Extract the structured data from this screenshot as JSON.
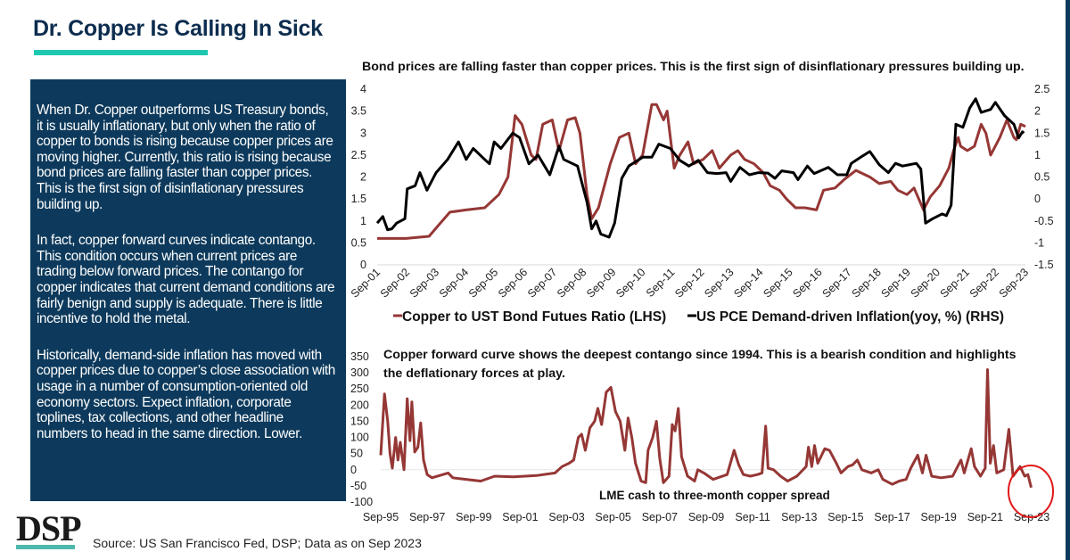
{
  "header": {
    "title": "Dr. Copper Is Calling In Sick"
  },
  "commentary": [
    "When Dr. Copper outperforms US Treasury bonds, it is usually inflationary, but only when the ratio of copper to bonds is rising because copper prices are moving higher. Currently, this ratio is rising because bond prices are falling faster than copper prices. This is the first sign of disinflationary pressures building up.",
    "In fact, copper forward curves indicate contango. This condition occurs when current prices are trading below forward prices. The contango for copper indicates that current demand conditions are fairly benign and supply is adequate. There is little incentive to hold the metal.",
    "Historically, demand-side inflation has moved with copper prices due to copper’s close association with usage in a number of consumption-oriented old economy sectors. Expect inflation, corporate toplines, tax collections, and other headline numbers to head in the same direction. Lower."
  ],
  "footer": {
    "logo": "DSP",
    "source": "Source: US San Francisco Fed, DSP; Data as on Sep 2023"
  },
  "colors": {
    "navy": "#0d3a5c",
    "teal": "#1ec8b0",
    "copper": "#953735",
    "black": "#000000",
    "circle": "#e01818"
  },
  "chart_data": [
    {
      "type": "line",
      "title": "Bond prices are falling faster than copper prices. This is the first sign of disinflationary pressures building up.",
      "x_unit": "year (fractional)",
      "x_ticks": [
        "Sep-01",
        "Sep-02",
        "Sep-03",
        "Sep-04",
        "Sep-05",
        "Sep-06",
        "Sep-07",
        "Sep-08",
        "Sep-09",
        "Sep-10",
        "Sep-11",
        "Sep-12",
        "Sep-13",
        "Sep-14",
        "Sep-15",
        "Sep-16",
        "Sep-17",
        "Sep-18",
        "Sep-19",
        "Sep-20",
        "Sep-21",
        "Sep-22",
        "Sep-23"
      ],
      "xlim": [
        2001.75,
        2023.75
      ],
      "ylim_left": [
        0,
        4
      ],
      "yticks_left": [
        "0",
        "0.5",
        "1",
        "1.5",
        "2",
        "2.5",
        "3",
        "3.5",
        "4"
      ],
      "ylim_right": [
        -1.5,
        2.5
      ],
      "yticks_right": [
        "-1.5",
        "-1",
        "-0.5",
        "0",
        "0.5",
        "1",
        "1.5",
        "2",
        "2.5"
      ],
      "legend_position": "bottom",
      "series": [
        {
          "name": "Copper to UST Bond Futues Ratio (LHS)",
          "axis": "left",
          "color": "#953735",
          "x": [
            2001.75,
            2002.73,
            2003.51,
            2003.83,
            2004.22,
            2004.77,
            2005.4,
            2005.88,
            2006.19,
            2006.43,
            2006.66,
            2006.98,
            2007.14,
            2007.37,
            2007.69,
            2007.92,
            2008.21,
            2008.47,
            2008.63,
            2008.87,
            2009.03,
            2009.26,
            2009.66,
            2009.97,
            2010.29,
            2010.52,
            2010.76,
            2011.07,
            2011.23,
            2011.47,
            2011.59,
            2011.7,
            2011.83,
            2012.02,
            2012.3,
            2012.49,
            2012.81,
            2013.12,
            2013.36,
            2013.75,
            2013.99,
            2014.22,
            2014.54,
            2014.85,
            2015.09,
            2015.4,
            2015.64,
            2015.95,
            2016.27,
            2016.66,
            2016.9,
            2017.29,
            2017.61,
            2018.0,
            2018.47,
            2018.79,
            2019.18,
            2019.42,
            2019.73,
            2019.97,
            2020.29,
            2020.52,
            2020.84,
            2021.15,
            2021.31,
            2021.47,
            2021.55,
            2021.78,
            2022.02,
            2022.25,
            2022.41,
            2022.57,
            2022.88,
            2023.12,
            2023.36,
            2023.44,
            2023.59,
            2023.75
          ],
          "y": [
            0.6,
            0.6,
            0.65,
            0.9,
            1.2,
            1.25,
            1.3,
            1.6,
            2.0,
            3.4,
            3.2,
            2.5,
            2.4,
            3.2,
            3.3,
            2.6,
            3.3,
            3.35,
            3.0,
            1.6,
            1.05,
            1.3,
            2.3,
            2.9,
            3.0,
            2.3,
            2.5,
            3.65,
            3.65,
            3.3,
            3.5,
            2.9,
            2.2,
            2.5,
            2.8,
            2.3,
            2.4,
            2.6,
            2.2,
            2.5,
            2.6,
            2.4,
            2.3,
            2.1,
            1.8,
            1.7,
            1.5,
            1.3,
            1.3,
            1.25,
            1.7,
            1.75,
            1.95,
            2.15,
            2.0,
            1.85,
            1.9,
            1.7,
            1.6,
            1.75,
            1.25,
            1.55,
            1.8,
            2.2,
            2.6,
            2.9,
            2.7,
            2.6,
            2.7,
            3.2,
            3.0,
            2.5,
            2.9,
            3.3,
            2.9,
            2.85,
            3.2,
            3.15
          ]
        },
        {
          "name": "US PCE Demand-driven Inflation(yoy, %) (RHS)",
          "axis": "right",
          "color": "#000000",
          "x": [
            2001.75,
            2001.94,
            2002.1,
            2002.25,
            2002.41,
            2002.69,
            2002.77,
            2003.04,
            2003.2,
            2003.44,
            2003.75,
            2004.14,
            2004.51,
            2004.77,
            2005.01,
            2005.4,
            2005.56,
            2005.72,
            2005.95,
            2006.35,
            2006.58,
            2006.9,
            2007.21,
            2007.61,
            2007.92,
            2008.08,
            2008.55,
            2008.87,
            2009.03,
            2009.18,
            2009.34,
            2009.62,
            2009.81,
            2010.05,
            2010.29,
            2010.76,
            2011.07,
            2011.31,
            2011.7,
            2012.02,
            2012.33,
            2012.65,
            2012.96,
            2013.28,
            2013.59,
            2013.75,
            2014.06,
            2014.38,
            2014.69,
            2015.01,
            2015.25,
            2015.48,
            2015.88,
            2016.03,
            2016.35,
            2016.58,
            2017.06,
            2017.37,
            2017.69,
            2017.84,
            2018.16,
            2018.47,
            2018.79,
            2019.1,
            2019.34,
            2019.58,
            2020.05,
            2020.2,
            2020.36,
            2020.6,
            2020.92,
            2021.07,
            2021.23,
            2021.39,
            2021.63,
            2021.86,
            2022.06,
            2022.25,
            2022.57,
            2022.73,
            2023.04,
            2023.36,
            2023.52,
            2023.65,
            2023.7
          ],
          "y": [
            -0.55,
            -0.4,
            -0.7,
            -0.68,
            -0.55,
            -0.45,
            0.23,
            0.3,
            0.6,
            0.2,
            0.6,
            0.9,
            1.3,
            0.9,
            1.15,
            0.9,
            0.8,
            1.3,
            1.15,
            1.5,
            1.4,
            0.8,
            1.0,
            0.55,
            1.2,
            0.9,
            0.75,
            -0.07,
            -0.68,
            -0.5,
            -0.8,
            -0.87,
            -0.55,
            0.47,
            0.75,
            0.95,
            0.95,
            1.25,
            1.15,
            0.88,
            0.75,
            0.88,
            0.6,
            0.58,
            0.6,
            0.4,
            0.72,
            0.55,
            0.6,
            0.59,
            0.47,
            0.64,
            0.6,
            0.44,
            0.75,
            0.58,
            0.72,
            0.55,
            0.55,
            0.81,
            0.95,
            1.08,
            0.78,
            0.6,
            0.81,
            0.75,
            0.81,
            0.68,
            -0.55,
            -0.45,
            -0.34,
            -0.38,
            -0.14,
            1.7,
            1.63,
            2.07,
            2.28,
            1.97,
            2.04,
            2.2,
            1.9,
            1.7,
            1.39,
            1.53,
            1.5
          ]
        }
      ]
    },
    {
      "type": "line",
      "title_lines": [
        "Copper forward curve shows the deepest contango since 1994. This is a bearish condition and highlights",
        "the deflationary forces at play."
      ],
      "annotation": "LME cash to three-month copper spread",
      "highlight": "red circle around latest data (Sep-23)",
      "x_ticks": [
        "Sep-95",
        "Sep-97",
        "Sep-99",
        "Sep-01",
        "Sep-03",
        "Sep-05",
        "Sep-07",
        "Sep-09",
        "Sep-11",
        "Sep-13",
        "Sep-15",
        "Sep-17",
        "Sep-19",
        "Sep-21",
        "Sep-23"
      ],
      "xlim": [
        1995.75,
        2023.75
      ],
      "ylim": [
        -100,
        350
      ],
      "yticks": [
        "-100",
        "-50",
        "0",
        "50",
        "100",
        "150",
        "200",
        "250",
        "300",
        "350"
      ],
      "series": [
        {
          "name": "LME cash to three-month copper spread",
          "color": "#953735",
          "x": [
            1995.75,
            1995.91,
            1996.05,
            1996.15,
            1996.25,
            1996.39,
            1996.49,
            1996.59,
            1996.75,
            1996.89,
            1997.01,
            1997.09,
            1997.21,
            1997.35,
            1997.47,
            1997.59,
            1997.75,
            1997.95,
            1998.65,
            1998.85,
            2000.05,
            2000.65,
            2001.45,
            2002.45,
            2003.25,
            2003.55,
            2003.85,
            2004.05,
            2004.25,
            2004.39,
            2004.55,
            2004.75,
            2004.95,
            2005.09,
            2005.25,
            2005.45,
            2005.65,
            2005.85,
            2006.05,
            2006.25,
            2006.39,
            2006.55,
            2006.71,
            2006.95,
            2007.15,
            2007.25,
            2007.45,
            2007.61,
            2007.75,
            2007.91,
            2008.15,
            2008.29,
            2008.41,
            2008.55,
            2008.69,
            2008.95,
            2009.25,
            2009.39,
            2009.65,
            2010.05,
            2010.65,
            2010.95,
            2011.15,
            2011.35,
            2011.65,
            2011.95,
            2012.15,
            2012.31,
            2012.41,
            2012.65,
            2012.95,
            2013.25,
            2013.65,
            2014.05,
            2014.15,
            2014.29,
            2014.41,
            2014.55,
            2014.85,
            2015.05,
            2015.35,
            2015.55,
            2015.85,
            2016.05,
            2016.25,
            2016.45,
            2016.85,
            2017.15,
            2017.35,
            2017.75,
            2018.05,
            2018.35,
            2018.55,
            2018.85,
            2019.05,
            2019.21,
            2019.45,
            2019.85,
            2020.35,
            2020.71,
            2020.85,
            2021.15,
            2021.29,
            2021.55,
            2021.75,
            2021.85,
            2021.97,
            2022.11,
            2022.25,
            2022.55,
            2022.77,
            2022.95,
            2023.25,
            2023.45,
            2023.59,
            2023.73
          ],
          "y": [
            45,
            235,
            150,
            50,
            5,
            100,
            30,
            85,
            0,
            220,
            90,
            210,
            55,
            70,
            145,
            30,
            -15,
            -25,
            -10,
            -25,
            -35,
            -20,
            -22,
            -18,
            -10,
            10,
            20,
            30,
            100,
            110,
            60,
            130,
            150,
            190,
            140,
            240,
            255,
            180,
            150,
            60,
            160,
            100,
            20,
            -35,
            -40,
            60,
            100,
            150,
            35,
            -40,
            -20,
            140,
            120,
            190,
            40,
            -20,
            -35,
            0,
            -10,
            -30,
            -15,
            60,
            15,
            -15,
            -20,
            -15,
            -10,
            135,
            5,
            0,
            -20,
            -35,
            -20,
            10,
            70,
            10,
            75,
            20,
            65,
            60,
            20,
            -10,
            10,
            15,
            30,
            0,
            -10,
            0,
            -30,
            -45,
            -35,
            -30,
            5,
            45,
            -10,
            45,
            -20,
            -25,
            -20,
            30,
            -10,
            65,
            10,
            -20,
            5,
            310,
            20,
            75,
            -10,
            0,
            125,
            -20,
            10,
            -20,
            -15,
            -55
          ]
        }
      ]
    }
  ]
}
